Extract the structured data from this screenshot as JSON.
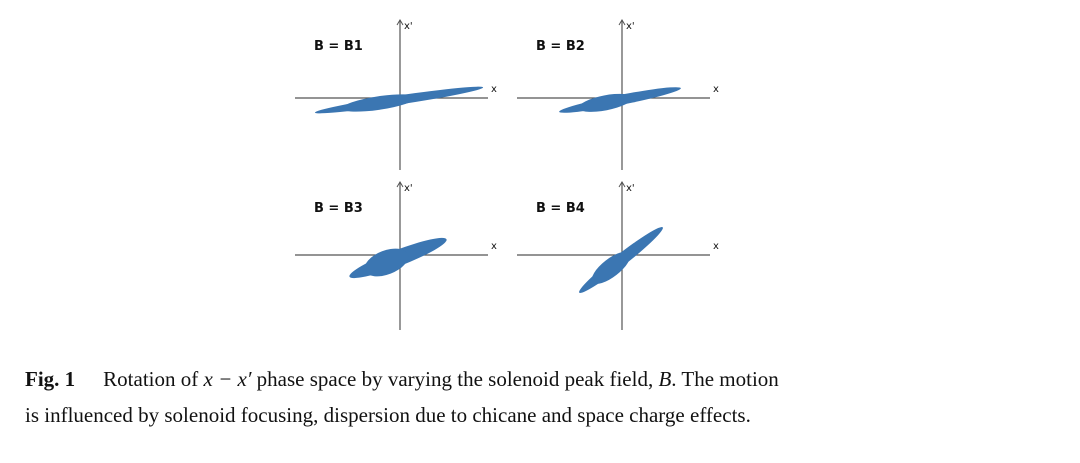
{
  "figure": {
    "panels": [
      {
        "label": "B = B1",
        "x_label": "x",
        "y_label": "x'"
      },
      {
        "label": "B = B2",
        "x_label": "x",
        "y_label": "x'"
      },
      {
        "label": "B = B3",
        "x_label": "x",
        "y_label": "x'"
      },
      {
        "label": "B = B4",
        "x_label": "x",
        "y_label": "x'"
      }
    ],
    "caption": {
      "label": "Fig. 1",
      "line1": [
        "Rotation of ",
        "x − x′",
        " phase space by varying the solenoid peak field, ",
        "B",
        ". The motion"
      ],
      "line2": "is influenced by solenoid focusing, dispersion due to chicane and space charge effects."
    }
  }
}
